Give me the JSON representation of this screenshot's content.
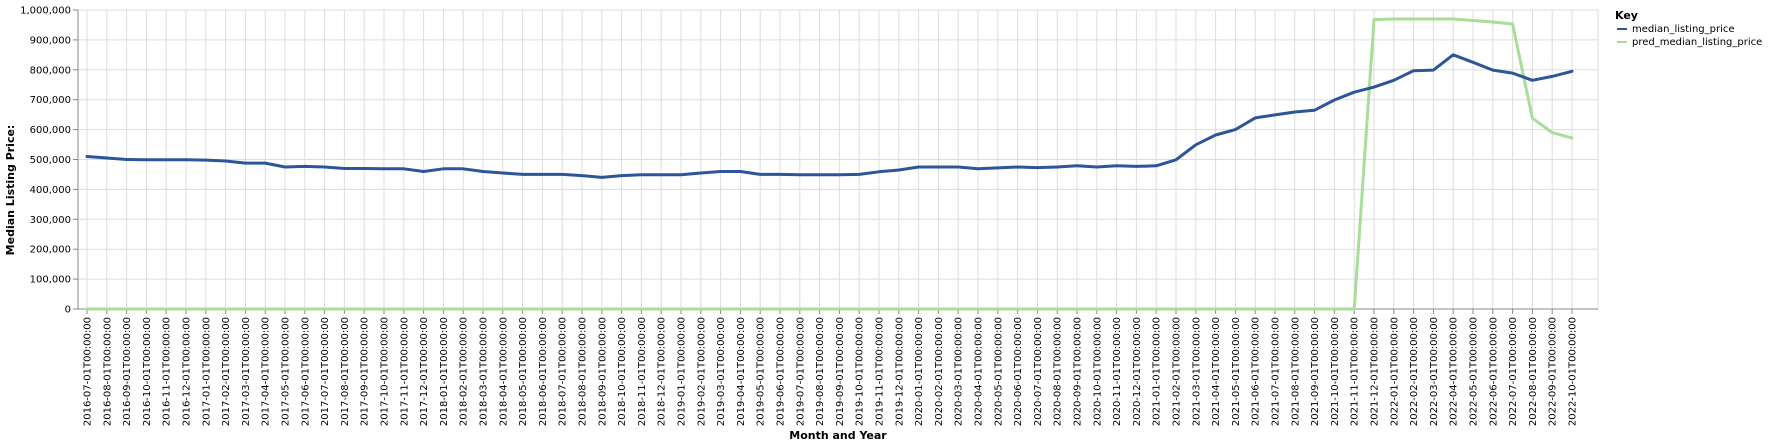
{
  "chart_data": {
    "type": "line",
    "title": "",
    "xlabel": "Month and Year",
    "ylabel": "Median Listing Price:",
    "ylim": [
      0,
      1000000
    ],
    "y_ticks": [
      "0",
      "100,000",
      "200,000",
      "300,000",
      "400,000",
      "500,000",
      "600,000",
      "700,000",
      "800,000",
      "900,000",
      "1,000,000"
    ],
    "y_tick_values": [
      0,
      100000,
      200000,
      300000,
      400000,
      500000,
      600000,
      700000,
      800000,
      900000,
      1000000
    ],
    "grid": true,
    "legend": {
      "title": "Key",
      "placement": "right"
    },
    "x": [
      "2016-07-01T00:00:00",
      "2016-08-01T00:00:00",
      "2016-09-01T00:00:00",
      "2016-10-01T00:00:00",
      "2016-11-01T00:00:00",
      "2016-12-01T00:00:00",
      "2017-01-01T00:00:00",
      "2017-02-01T00:00:00",
      "2017-03-01T00:00:00",
      "2017-04-01T00:00:00",
      "2017-05-01T00:00:00",
      "2017-06-01T00:00:00",
      "2017-07-01T00:00:00",
      "2017-08-01T00:00:00",
      "2017-09-01T00:00:00",
      "2017-10-01T00:00:00",
      "2017-11-01T00:00:00",
      "2017-12-01T00:00:00",
      "2018-01-01T00:00:00",
      "2018-02-01T00:00:00",
      "2018-03-01T00:00:00",
      "2018-04-01T00:00:00",
      "2018-05-01T00:00:00",
      "2018-06-01T00:00:00",
      "2018-07-01T00:00:00",
      "2018-08-01T00:00:00",
      "2018-09-01T00:00:00",
      "2018-10-01T00:00:00",
      "2018-11-01T00:00:00",
      "2018-12-01T00:00:00",
      "2019-01-01T00:00:00",
      "2019-02-01T00:00:00",
      "2019-03-01T00:00:00",
      "2019-04-01T00:00:00",
      "2019-05-01T00:00:00",
      "2019-06-01T00:00:00",
      "2019-07-01T00:00:00",
      "2019-08-01T00:00:00",
      "2019-09-01T00:00:00",
      "2019-10-01T00:00:00",
      "2019-11-01T00:00:00",
      "2019-12-01T00:00:00",
      "2020-01-01T00:00:00",
      "2020-02-01T00:00:00",
      "2020-03-01T00:00:00",
      "2020-04-01T00:00:00",
      "2020-05-01T00:00:00",
      "2020-06-01T00:00:00",
      "2020-07-01T00:00:00",
      "2020-08-01T00:00:00",
      "2020-09-01T00:00:00",
      "2020-10-01T00:00:00",
      "2020-11-01T00:00:00",
      "2020-12-01T00:00:00",
      "2021-01-01T00:00:00",
      "2021-02-01T00:00:00",
      "2021-03-01T00:00:00",
      "2021-04-01T00:00:00",
      "2021-05-01T00:00:00",
      "2021-06-01T00:00:00",
      "2021-07-01T00:00:00",
      "2021-08-01T00:00:00",
      "2021-09-01T00:00:00",
      "2021-10-01T00:00:00",
      "2021-11-01T00:00:00",
      "2021-12-01T00:00:00",
      "2022-01-01T00:00:00",
      "2022-02-01T00:00:00",
      "2022-03-01T00:00:00",
      "2022-04-01T00:00:00",
      "2022-05-01T00:00:00",
      "2022-06-01T00:00:00",
      "2022-07-01T00:00:00",
      "2022-08-01T00:00:00",
      "2022-09-01T00:00:00",
      "2022-10-01T00:00:00"
    ],
    "series": [
      {
        "name": "median_listing_price",
        "color": "#2e5597",
        "values": [
          510000,
          505000,
          500000,
          499000,
          499000,
          499000,
          498000,
          495000,
          488000,
          488000,
          475000,
          477000,
          475000,
          470000,
          470000,
          469000,
          469000,
          460000,
          469000,
          469000,
          460000,
          455000,
          450000,
          450000,
          450000,
          446000,
          440000,
          446000,
          449000,
          449000,
          449000,
          455000,
          460000,
          460000,
          450000,
          450000,
          449000,
          449000,
          449000,
          450000,
          459000,
          465000,
          475000,
          475000,
          475000,
          469000,
          472000,
          475000,
          473000,
          475000,
          479000,
          475000,
          479000,
          477000,
          479000,
          499000,
          549000,
          582000,
          600000,
          639000,
          649000,
          659000,
          665000,
          699000,
          725000,
          742000,
          765000,
          797000,
          799000,
          850000,
          825000,
          799000,
          789000,
          765000,
          778000,
          795000
        ]
      },
      {
        "name": "pred_median_listing_price",
        "color": "#a9dd9a",
        "values": [
          0,
          0,
          0,
          0,
          0,
          0,
          0,
          0,
          0,
          0,
          0,
          0,
          0,
          0,
          0,
          0,
          0,
          0,
          0,
          0,
          0,
          0,
          0,
          0,
          0,
          0,
          0,
          0,
          0,
          0,
          0,
          0,
          0,
          0,
          0,
          0,
          0,
          0,
          0,
          0,
          0,
          0,
          0,
          0,
          0,
          0,
          0,
          0,
          0,
          0,
          0,
          0,
          0,
          0,
          0,
          0,
          0,
          0,
          0,
          0,
          0,
          0,
          0,
          0,
          0,
          968000,
          970000,
          970000,
          970000,
          970000,
          965000,
          960000,
          953000,
          638000,
          590000,
          572000
        ]
      }
    ]
  }
}
